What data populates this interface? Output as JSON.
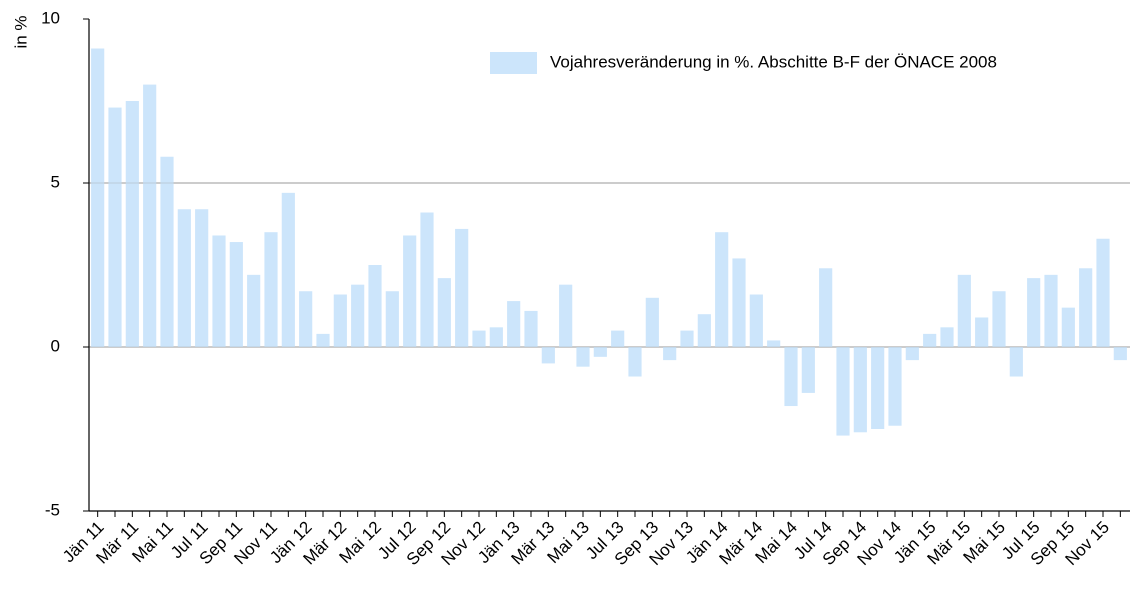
{
  "chart_data": {
    "type": "bar",
    "y_label": "in %",
    "categories": [
      "Jän 11",
      null,
      "Mär 11",
      null,
      "Mai 11",
      null,
      "Jul 11",
      null,
      "Sep 11",
      null,
      "Nov 11",
      null,
      "Jän 12",
      null,
      "Mär 12",
      null,
      "Mai 12",
      null,
      "Jul 12",
      null,
      "Sep 12",
      null,
      "Nov 12",
      null,
      "Jän 13",
      null,
      "Mär 13",
      null,
      "Mai 13",
      null,
      "Jul 13",
      null,
      "Sep 13",
      null,
      "Nov 13",
      null,
      "Jän 14",
      null,
      "Mär 14",
      null,
      "Mai 14",
      null,
      "Jul 14",
      null,
      "Sep 14",
      null,
      "Nov 14",
      null,
      "Jän 15",
      null,
      "Mär 15",
      null,
      "Mai 15",
      null,
      "Jul 15",
      null,
      "Sep 15",
      null,
      "Nov 15",
      null
    ],
    "series": [
      {
        "name": "Vojahresveränderung in %. Abschitte B-F der ÖNACE 2008",
        "color": "#cce5fb",
        "values": [
          9.1,
          7.3,
          7.5,
          8.0,
          5.8,
          4.2,
          4.2,
          3.4,
          3.2,
          2.2,
          3.5,
          4.7,
          1.7,
          0.4,
          1.6,
          1.9,
          2.5,
          1.7,
          3.4,
          4.1,
          2.1,
          3.6,
          0.5,
          0.6,
          1.4,
          1.1,
          -0.5,
          1.9,
          -0.6,
          -0.3,
          0.5,
          -0.9,
          1.5,
          -0.4,
          0.5,
          1.0,
          3.5,
          2.7,
          1.6,
          0.2,
          -1.8,
          -1.4,
          2.4,
          -2.7,
          -2.6,
          -2.5,
          -2.4,
          -0.4,
          0.4,
          0.6,
          2.2,
          0.9,
          1.7,
          -0.9,
          2.1,
          2.2,
          1.2,
          2.4,
          3.3,
          -0.4
        ]
      }
    ],
    "ylim": [
      -5,
      10
    ],
    "yticks": [
      -5,
      0,
      5,
      10
    ],
    "grid": true,
    "legend": "top-right"
  }
}
